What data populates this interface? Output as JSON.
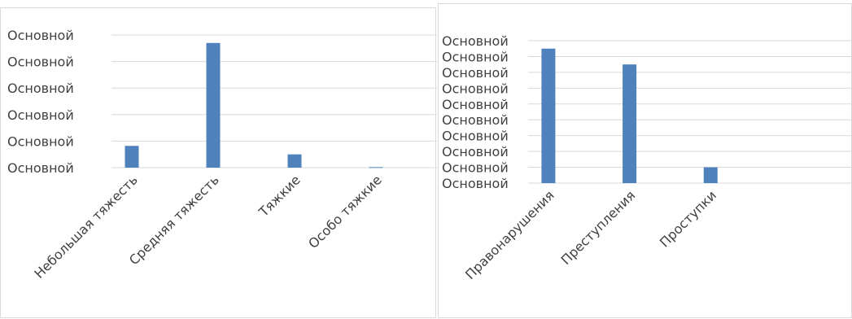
{
  "colors": {
    "bar": "#4f81bd",
    "grid": "#d9d9d9",
    "text": "#404040"
  },
  "chart_data": [
    {
      "type": "bar",
      "title": "",
      "xlabel": "",
      "ylabel": "",
      "grid": true,
      "legend": "none",
      "ylim": [
        0,
        5
      ],
      "y_tick_labels": [
        "Основной",
        "Основной",
        "Основной",
        "Основной",
        "Основной",
        "Основной"
      ],
      "categories": [
        "Небольшая тяжесть",
        "Средняя тяжесть",
        "Тяжкие",
        "Особо тяжкие"
      ],
      "values": [
        0.82,
        4.7,
        0.5,
        0.02
      ]
    },
    {
      "type": "bar",
      "title": "",
      "xlabel": "",
      "ylabel": "",
      "grid": true,
      "legend": "none",
      "ylim": [
        0,
        9
      ],
      "y_tick_labels": [
        "Основной",
        "Основной",
        "Основной",
        "Основной",
        "Основной",
        "Основной",
        "Основной",
        "Основной",
        "Основной",
        "Основной"
      ],
      "categories": [
        "Правонарушения",
        "Преступления",
        "Проступки"
      ],
      "values": [
        8.5,
        7.5,
        1.0
      ]
    }
  ]
}
